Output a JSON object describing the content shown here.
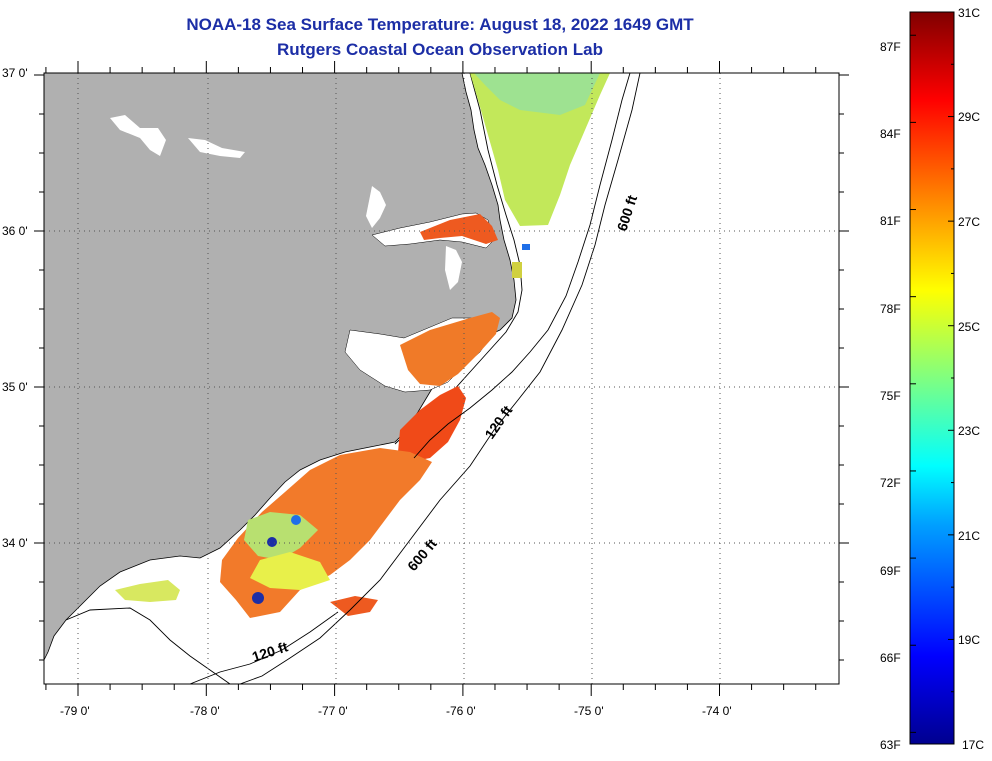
{
  "header": {
    "title": "NOAA-18 Sea Surface Temperature:  August 18, 2022 1649 GMT",
    "subtitle": "Rutgers Coastal Ocean Observation Lab"
  },
  "map": {
    "lon_range": [
      -79.3,
      -73.2
    ],
    "lat_range": [
      33.1,
      37.0
    ],
    "lon_ticks": [
      -79,
      -78,
      -77,
      -76,
      -75,
      -74
    ],
    "lat_ticks": [
      37,
      36,
      35,
      34
    ],
    "lon_labels": [
      "-79 0'",
      "-78 0'",
      "-77 0'",
      "-76 0'",
      "-75 0'",
      "-74 0'"
    ],
    "lat_labels": [
      "37 0'",
      "36 0'",
      "35 0'",
      "34 0'"
    ],
    "isobath_labels": [
      "600 ft",
      "120 ft",
      "600 ft",
      "120 ft"
    ],
    "colors": {
      "land": "#b0b0b0",
      "ocean": "#ffffff",
      "grid": "#555555"
    }
  },
  "colorbar": {
    "f_labels": [
      "87F",
      "84F",
      "81F",
      "78F",
      "75F",
      "72F",
      "69F",
      "66F",
      "63F"
    ],
    "c_labels": [
      "31C",
      "29C",
      "27C",
      "25C",
      "23C",
      "21C",
      "19C",
      "17C"
    ],
    "range_c": [
      17,
      31
    ]
  }
}
